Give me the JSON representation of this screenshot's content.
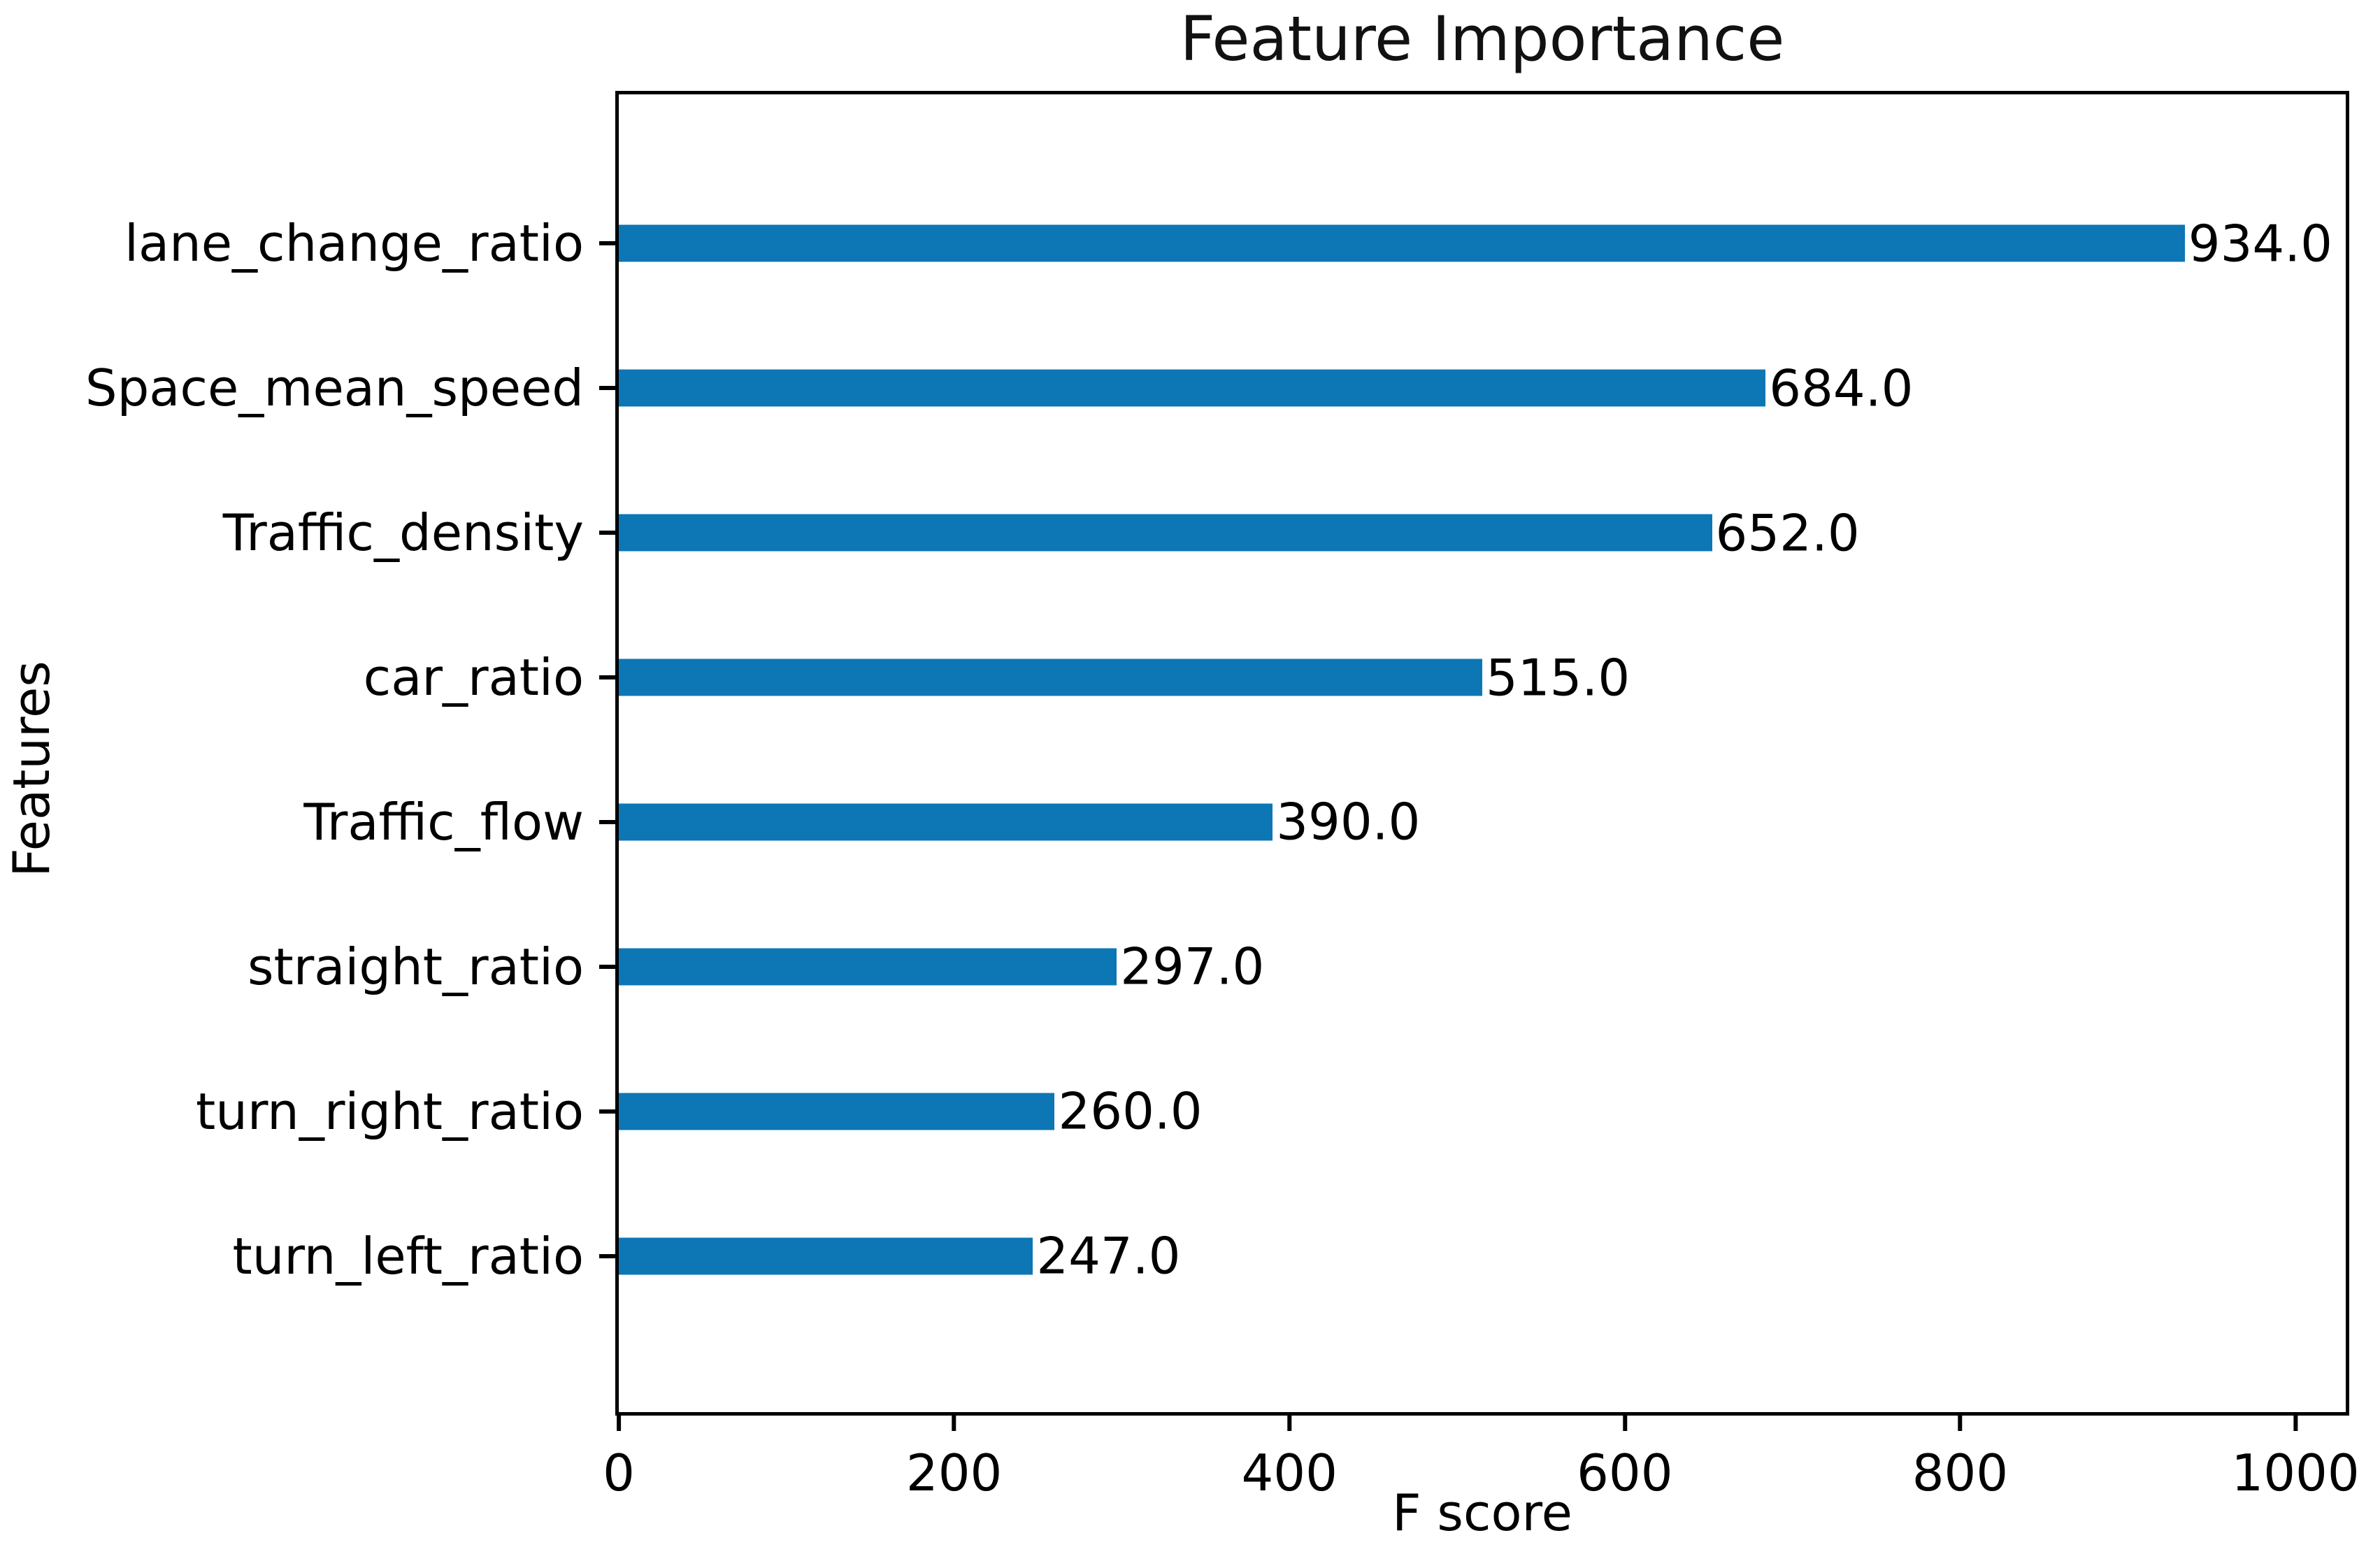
{
  "chart_data": {
    "type": "bar",
    "orientation": "horizontal",
    "title": "Feature Importance",
    "xlabel": "F score",
    "ylabel": "Features",
    "categories": [
      "lane_change_ratio",
      "Space_mean_speed",
      "Traffic_density",
      "car_ratio",
      "Traffic_flow",
      "straight_ratio",
      "turn_right_ratio",
      "turn_left_ratio"
    ],
    "values": [
      934,
      684,
      652,
      515,
      390,
      297,
      260,
      247
    ],
    "value_labels": [
      "934.0",
      "684.0",
      "652.0",
      "515.0",
      "390.0",
      "297.0",
      "260.0",
      "247.0"
    ],
    "xticks": [
      0,
      200,
      400,
      600,
      800,
      1000
    ],
    "xlim": [
      0,
      1030
    ],
    "grid": false,
    "legend": "none",
    "bar_color": "#0d76b5"
  }
}
